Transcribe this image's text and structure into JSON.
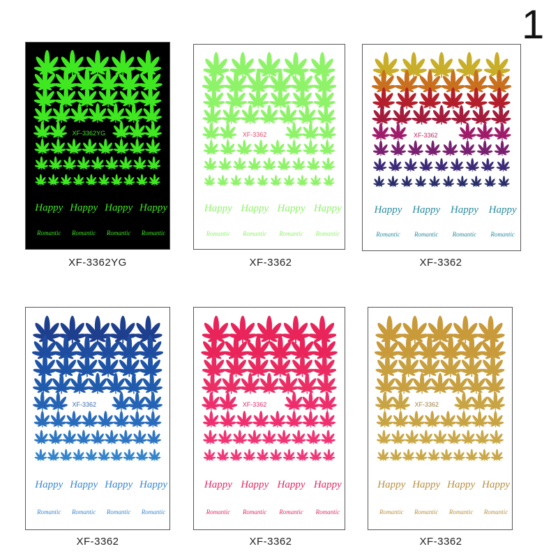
{
  "figure_number": "1",
  "sheets": [
    {
      "caption": "XF-3362YG",
      "code": "XF-3362YG",
      "background": "#000000",
      "leaf_colors": [
        "#3fe820",
        "#3fe820",
        "#3fe820",
        "#3fe820",
        "#3fe820",
        "#3fe820",
        "#3fe820",
        "#3fe820"
      ],
      "text_color": "#3fe820",
      "code_color": "#3fe820",
      "words": [
        "Happy",
        "Romantic"
      ]
    },
    {
      "caption": "XF-3362",
      "code": "XF-3362",
      "background": "#ffffff",
      "leaf_colors": [
        "#8ff36a",
        "#8ff36a",
        "#8ff36a",
        "#8ff36a",
        "#8ff36a",
        "#8ff36a",
        "#8ff36a",
        "#8ff36a"
      ],
      "text_color": "#8ff36a",
      "code_color": "#e04a6a",
      "words": [
        "Happy",
        "Romantic"
      ]
    },
    {
      "caption": "XF-3362",
      "code": "XF-3362",
      "background": "#ffffff",
      "leaf_colors": [
        "#c9ae2a",
        "#c9701e",
        "#b3202c",
        "#a31c3c",
        "#a01c6a",
        "#7a2070",
        "#3c2a78",
        "#2a2f6a"
      ],
      "text_color": "#2a8aa0",
      "code_color": "#c02060",
      "words": [
        "Happy",
        "Romantic"
      ]
    },
    {
      "caption": "XF-3362",
      "code": "XF-3362",
      "background": "#ffffff",
      "leaf_colors": [
        "#1e3f8e",
        "#1e4c9e",
        "#1e54a8",
        "#205cae",
        "#2564b4",
        "#2a6cbc",
        "#2f76c2",
        "#3484cc"
      ],
      "text_color": "#3a86d0",
      "code_color": "#3a6ab0",
      "words": [
        "Happy",
        "Romantic"
      ]
    },
    {
      "caption": "XF-3362",
      "code": "XF-3362",
      "background": "#ffffff",
      "leaf_colors": [
        "#e8245a",
        "#e8245a",
        "#ea2a60",
        "#ec2e66",
        "#ee2e6c",
        "#ee3070",
        "#f03474",
        "#f03878"
      ],
      "text_color": "#e02a64",
      "code_color": "#e02a64",
      "words": [
        "Happy",
        "Romantic"
      ]
    },
    {
      "caption": "XF-3362",
      "code": "XF-3362",
      "background": "#ffffff",
      "leaf_colors": [
        "#c89a3a",
        "#c89a3a",
        "#c8a040",
        "#c8a040",
        "#c9a444",
        "#c9a444",
        "#caa848",
        "#caa848"
      ],
      "text_color": "#b89040",
      "code_color": "#a08040",
      "words": [
        "Happy",
        "Romantic"
      ]
    }
  ]
}
